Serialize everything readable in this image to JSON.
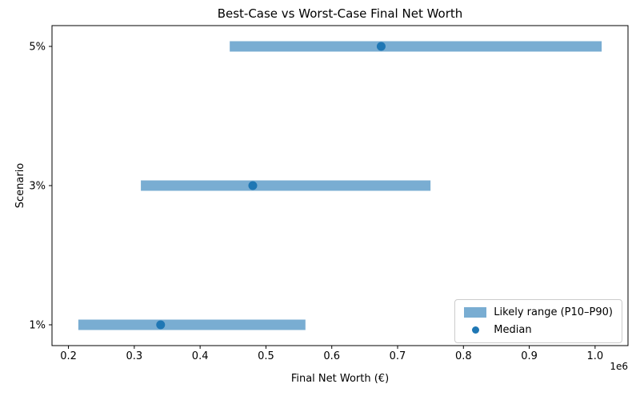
{
  "figure": {
    "title": "Best-Case vs Worst-Case Final Net Worth",
    "xlabel": "Final Net Worth (€)",
    "ylabel": "Scenario",
    "offset_text": "1e6"
  },
  "legend": {
    "range_label": "Likely range (P10–P90)",
    "median_label": "Median"
  },
  "colors": {
    "bar": "#79add2",
    "median": "#1f77b4",
    "axis": "#000000",
    "legend_border": "#cccccc"
  },
  "chart_data": {
    "type": "bar",
    "orientation": "horizontal",
    "title": "Best-Case vs Worst-Case Final Net Worth",
    "xlabel": "Final Net Worth (€)",
    "ylabel": "Scenario",
    "categories": [
      "5%",
      "3%",
      "1%"
    ],
    "rows": [
      {
        "scenario": "5%",
        "p10": 445000,
        "median": 675000,
        "p90": 1010000
      },
      {
        "scenario": "3%",
        "p10": 310000,
        "median": 480000,
        "p90": 750000
      },
      {
        "scenario": "1%",
        "p10": 215000,
        "median": 340000,
        "p90": 560000
      }
    ],
    "series": [
      {
        "name": "P10",
        "values": [
          445000,
          310000,
          215000
        ]
      },
      {
        "name": "Median",
        "values": [
          675000,
          480000,
          340000
        ]
      },
      {
        "name": "P90",
        "values": [
          1010000,
          750000,
          560000
        ]
      }
    ],
    "xlim": [
      175000,
      1050000
    ],
    "xticks": [
      200000,
      300000,
      400000,
      500000,
      600000,
      700000,
      800000,
      900000,
      1000000
    ],
    "x_multiplier": 1000000,
    "x_offset_label": "1e6",
    "grid": false,
    "legend_position": "lower right"
  }
}
